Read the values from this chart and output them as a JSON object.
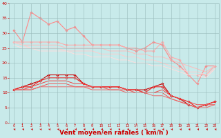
{
  "x": [
    0,
    1,
    2,
    3,
    4,
    5,
    6,
    7,
    8,
    9,
    10,
    11,
    12,
    13,
    14,
    15,
    16,
    17,
    18,
    19,
    20,
    21,
    22,
    23
  ],
  "series": [
    {
      "name": "max_rafales",
      "color": "#ff8888",
      "marker": "D",
      "markersize": 1.8,
      "linewidth": 0.8,
      "values": [
        31,
        27,
        37,
        35,
        33,
        34,
        31,
        32,
        29,
        26,
        26,
        26,
        26,
        25,
        24,
        25,
        27,
        26,
        21,
        19,
        16,
        13,
        19,
        19
      ]
    },
    {
      "name": "moy_rafales_high",
      "color": "#ffaaaa",
      "marker": "D",
      "markersize": 1.8,
      "linewidth": 0.8,
      "values": [
        27,
        27,
        27,
        27,
        27,
        27,
        26,
        26,
        26,
        26,
        26,
        26,
        26,
        25,
        25,
        24,
        24,
        27,
        22,
        21,
        16,
        16,
        16,
        19
      ]
    },
    {
      "name": "moy_rafales_mid1",
      "color": "#ffbbbb",
      "marker": null,
      "linewidth": 0.7,
      "values": [
        27,
        26,
        26,
        26,
        26,
        26,
        25,
        25,
        25,
        25,
        25,
        24,
        24,
        24,
        23,
        23,
        22,
        22,
        21,
        20,
        19,
        18,
        17,
        19
      ]
    },
    {
      "name": "moy_rafales_mid2",
      "color": "#ffcccc",
      "marker": null,
      "linewidth": 0.7,
      "values": [
        27,
        26,
        25,
        25,
        25,
        25,
        24,
        24,
        24,
        24,
        23,
        23,
        23,
        22,
        22,
        21,
        21,
        20,
        19,
        18,
        17,
        17,
        16,
        18
      ]
    },
    {
      "name": "moy_rafales_lowest",
      "color": "#ffdddd",
      "marker": null,
      "linewidth": 0.7,
      "values": [
        26,
        25,
        25,
        24,
        24,
        24,
        24,
        23,
        23,
        22,
        22,
        22,
        21,
        21,
        20,
        20,
        19,
        19,
        18,
        17,
        16,
        16,
        15,
        18
      ]
    },
    {
      "name": "vent_max",
      "color": "#cc0000",
      "marker": "D",
      "markersize": 1.8,
      "linewidth": 0.8,
      "values": [
        11,
        12,
        13,
        14,
        16,
        16,
        16,
        16,
        13,
        12,
        12,
        12,
        12,
        11,
        11,
        11,
        12,
        13,
        9,
        8,
        6,
        5,
        6,
        7
      ]
    },
    {
      "name": "vent_moy_high",
      "color": "#ee2222",
      "marker": "D",
      "markersize": 1.8,
      "linewidth": 0.8,
      "values": [
        11,
        12,
        12,
        14,
        15,
        15,
        15,
        15,
        13,
        12,
        12,
        12,
        12,
        11,
        11,
        10,
        12,
        12,
        9,
        8,
        7,
        5,
        6,
        7
      ]
    },
    {
      "name": "vent_moy_mid1",
      "color": "#ee4444",
      "marker": null,
      "linewidth": 0.7,
      "values": [
        11,
        11,
        12,
        13,
        14,
        14,
        14,
        13,
        13,
        12,
        12,
        12,
        12,
        11,
        11,
        10,
        10,
        11,
        9,
        8,
        7,
        6,
        6,
        7
      ]
    },
    {
      "name": "vent_moy_mid2",
      "color": "#ee5555",
      "marker": null,
      "linewidth": 0.7,
      "values": [
        11,
        11,
        11,
        12,
        13,
        13,
        13,
        12,
        12,
        12,
        12,
        11,
        11,
        11,
        10,
        10,
        10,
        10,
        8,
        7,
        6,
        5,
        6,
        6
      ]
    },
    {
      "name": "vent_moy_lowest",
      "color": "#ee6666",
      "marker": null,
      "linewidth": 0.7,
      "values": [
        11,
        11,
        11,
        12,
        12,
        12,
        12,
        12,
        12,
        11,
        11,
        11,
        11,
        10,
        10,
        10,
        9,
        9,
        8,
        7,
        6,
        5,
        5,
        6
      ]
    }
  ],
  "xlabel": "Vent moyen/en rafales ( km/h )",
  "xlabel_color": "#cc0000",
  "xlabel_fontsize": 6.5,
  "background_color": "#c8eaea",
  "grid_color": "#99bbbb",
  "tick_color": "#cc0000",
  "xlim": [
    -0.5,
    23.5
  ],
  "ylim": [
    0,
    40
  ],
  "yticks": [
    0,
    5,
    10,
    15,
    20,
    25,
    30,
    35,
    40
  ],
  "xticks": [
    0,
    1,
    2,
    3,
    4,
    5,
    6,
    7,
    8,
    9,
    10,
    11,
    12,
    13,
    14,
    15,
    16,
    17,
    18,
    19,
    20,
    21,
    22,
    23
  ],
  "arrow_color": "#cc0000"
}
